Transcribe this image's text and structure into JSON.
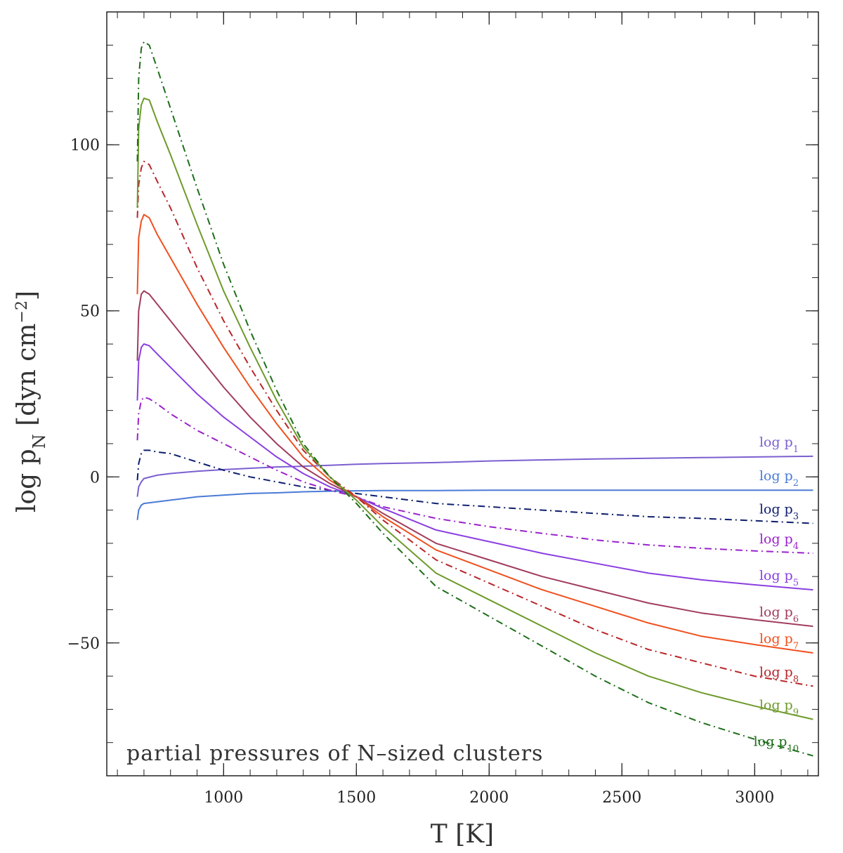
{
  "chart_data": {
    "type": "line",
    "title": "",
    "annotation": "partial pressures of N–sized clusters",
    "xlabel": "T [K]",
    "ylabel_parts": {
      "base": "log p",
      "sub": "N",
      "bracket": " [dyn cm",
      "sup": "−2",
      "close": "]"
    },
    "xlim": [
      560,
      3240
    ],
    "ylim": [
      -90,
      140
    ],
    "x_ticks": [
      {
        "value": 1000,
        "label": "1000"
      },
      {
        "value": 1500,
        "label": "1500"
      },
      {
        "value": 2000,
        "label": "2000"
      },
      {
        "value": 2500,
        "label": "2500"
      },
      {
        "value": 3000,
        "label": "3000"
      }
    ],
    "y_ticks": [
      {
        "value": 100,
        "label": "100"
      },
      {
        "value": 50,
        "label": "50"
      },
      {
        "value": 0,
        "label": "0"
      },
      {
        "value": -50,
        "label": "−50"
      }
    ],
    "x_minor_step": 100,
    "y_minor_step": 10,
    "grid": false,
    "series": [
      {
        "name": "log p1",
        "label_base": "log p",
        "label_sub": "1",
        "color": "#7b5fd0",
        "dash": "solid",
        "x": [
          675,
          680,
          690,
          700,
          750,
          800,
          900,
          1000,
          1100,
          1200,
          1300,
          1400,
          1500,
          1600,
          1800,
          2000,
          2200,
          2400,
          2600,
          2800,
          3000,
          3220
        ],
        "y": [
          -6,
          -3,
          -1.5,
          -0.5,
          0.5,
          1,
          1.7,
          2.2,
          2.6,
          3,
          3.2,
          3.5,
          3.8,
          4,
          4.3,
          4.8,
          5.1,
          5.4,
          5.6,
          5.8,
          6,
          6.2
        ]
      },
      {
        "name": "log p2",
        "label_base": "log p",
        "label_sub": "2",
        "color": "#4a7bd6",
        "dash": "solid",
        "x": [
          675,
          680,
          690,
          700,
          750,
          800,
          900,
          1000,
          1100,
          1200,
          1300,
          1400,
          1500,
          1600,
          1800,
          2000,
          2200,
          2400,
          2600,
          2800,
          3000,
          3220
        ],
        "y": [
          -13,
          -10,
          -8.5,
          -8,
          -7.5,
          -7,
          -6,
          -5.5,
          -5,
          -4.8,
          -4.5,
          -4.3,
          -4.2,
          -4.1,
          -4.1,
          -4,
          -4,
          -4,
          -4,
          -4,
          -4,
          -4
        ]
      },
      {
        "name": "log p3",
        "label_base": "log p",
        "label_sub": "3",
        "color": "#0d1e6e",
        "dash": "10 5 2 5",
        "x": [
          675,
          680,
          690,
          700,
          720,
          750,
          800,
          900,
          1000,
          1100,
          1200,
          1300,
          1400,
          1500,
          1600,
          1800,
          2000,
          2200,
          2400,
          2600,
          2800,
          3000,
          3220
        ],
        "y": [
          -1,
          4,
          7,
          8,
          8,
          7.5,
          7,
          4.5,
          2,
          0,
          -1.5,
          -3,
          -4,
          -5,
          -6,
          -8,
          -9,
          -10,
          -11,
          -12,
          -12.5,
          -13.2,
          -14
        ]
      },
      {
        "name": "log p4",
        "label_base": "log p",
        "label_sub": "4",
        "color": "#9b22cc",
        "dash": "10 5 2 5",
        "x": [
          675,
          680,
          690,
          700,
          720,
          750,
          800,
          900,
          1000,
          1100,
          1200,
          1300,
          1400,
          1500,
          1600,
          1800,
          2000,
          2200,
          2400,
          2600,
          2800,
          3000,
          3220
        ],
        "y": [
          11,
          19,
          23,
          24,
          23.5,
          22,
          19,
          14,
          10,
          6,
          2,
          -1.5,
          -4,
          -6,
          -9,
          -12.5,
          -15,
          -17,
          -19,
          -20.5,
          -21.5,
          -22.3,
          -23
        ]
      },
      {
        "name": "log p5",
        "label_base": "log p",
        "label_sub": "5",
        "color": "#8a3fe0",
        "dash": "solid",
        "x": [
          675,
          680,
          690,
          700,
          720,
          750,
          800,
          900,
          1000,
          1100,
          1200,
          1300,
          1400,
          1500,
          1600,
          1800,
          2000,
          2200,
          2400,
          2600,
          2800,
          3000,
          3220
        ],
        "y": [
          23,
          35,
          39,
          40,
          39.5,
          37,
          33,
          25,
          18,
          12,
          6,
          1,
          -3,
          -6,
          -9.5,
          -16,
          -19.5,
          -23,
          -26,
          -29,
          -31,
          -32.5,
          -34
        ]
      },
      {
        "name": "log p6",
        "label_base": "log p",
        "label_sub": "6",
        "color": "#a13c5c",
        "dash": "solid",
        "x": [
          675,
          680,
          690,
          700,
          720,
          750,
          800,
          900,
          1000,
          1100,
          1200,
          1300,
          1400,
          1500,
          1600,
          1800,
          2000,
          2200,
          2400,
          2600,
          2800,
          3000,
          3220
        ],
        "y": [
          35,
          50,
          55,
          56,
          55,
          52,
          47,
          37,
          27,
          18,
          10,
          3,
          -2,
          -6,
          -11,
          -20,
          -25,
          -30,
          -34,
          -38,
          -41,
          -43,
          -45
        ]
      },
      {
        "name": "log p7",
        "label_base": "log p",
        "label_sub": "7",
        "color": "#f0501e",
        "dash": "solid",
        "x": [
          675,
          680,
          690,
          700,
          720,
          750,
          800,
          900,
          1000,
          1100,
          1200,
          1300,
          1400,
          1500,
          1600,
          1800,
          2000,
          2200,
          2400,
          2600,
          2800,
          3000,
          3220
        ],
        "y": [
          55,
          72,
          77,
          79,
          78,
          73,
          66,
          52,
          39,
          27,
          16,
          6,
          -1,
          -6,
          -12,
          -22,
          -28,
          -34,
          -39,
          -44,
          -48,
          -50.5,
          -53
        ]
      },
      {
        "name": "log p8",
        "label_base": "log p",
        "label_sub": "8",
        "color": "#b8262a",
        "dash": "10 5 2 5",
        "x": [
          675,
          680,
          690,
          700,
          720,
          750,
          800,
          900,
          1000,
          1100,
          1200,
          1300,
          1400,
          1500,
          1600,
          1800,
          2000,
          2200,
          2400,
          2600,
          2800,
          3000,
          3220
        ],
        "y": [
          78,
          88,
          93,
          95,
          94,
          89,
          81,
          63,
          47,
          33,
          20,
          8,
          0,
          -6,
          -13,
          -25,
          -32,
          -39,
          -46,
          -52,
          -56,
          -60,
          -63
        ]
      },
      {
        "name": "log p9",
        "label_base": "log p",
        "label_sub": "9",
        "color": "#6e9a2b",
        "dash": "solid",
        "x": [
          675,
          680,
          690,
          700,
          720,
          750,
          800,
          900,
          1000,
          1100,
          1200,
          1300,
          1400,
          1500,
          1600,
          1800,
          2000,
          2200,
          2400,
          2600,
          2800,
          3000,
          3220
        ],
        "y": [
          81,
          105,
          112,
          114,
          113.5,
          107,
          97,
          76,
          56,
          39,
          23,
          9,
          0,
          -7,
          -15,
          -29,
          -37,
          -45,
          -53,
          -60,
          -65,
          -69,
          -73
        ]
      },
      {
        "name": "log p10",
        "label_base": "log p",
        "label_sub": "10",
        "color": "#1e6e1a",
        "dash": "10 5 2 5",
        "x": [
          675,
          680,
          690,
          700,
          720,
          750,
          800,
          900,
          1000,
          1100,
          1200,
          1300,
          1400,
          1500,
          1600,
          1800,
          2000,
          2200,
          2400,
          2600,
          2800,
          3000,
          3220
        ],
        "y": [
          95,
          120,
          129,
          131,
          130,
          123,
          111,
          87,
          64,
          44,
          26,
          10,
          0,
          -8,
          -17,
          -33,
          -42,
          -51,
          -60,
          -68,
          -74,
          -79,
          -84
        ]
      }
    ]
  }
}
